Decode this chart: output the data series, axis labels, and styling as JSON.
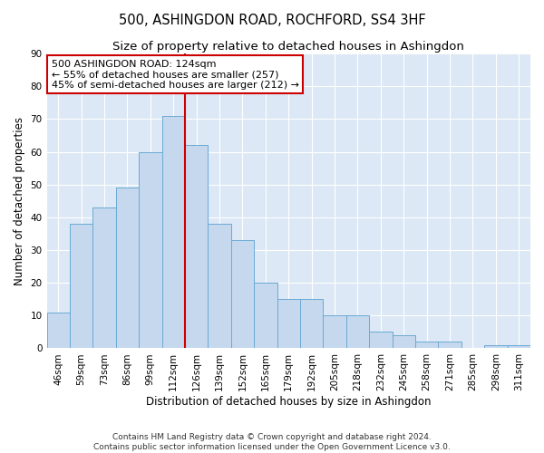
{
  "title": "500, ASHINGDON ROAD, ROCHFORD, SS4 3HF",
  "subtitle": "Size of property relative to detached houses in Ashingdon",
  "xlabel": "Distribution of detached houses by size in Ashingdon",
  "ylabel": "Number of detached properties",
  "categories": [
    "46sqm",
    "59sqm",
    "73sqm",
    "86sqm",
    "99sqm",
    "112sqm",
    "126sqm",
    "139sqm",
    "152sqm",
    "165sqm",
    "179sqm",
    "192sqm",
    "205sqm",
    "218sqm",
    "232sqm",
    "245sqm",
    "258sqm",
    "271sqm",
    "285sqm",
    "298sqm",
    "311sqm"
  ],
  "values": [
    11,
    38,
    43,
    49,
    60,
    71,
    62,
    38,
    33,
    20,
    15,
    15,
    10,
    10,
    5,
    4,
    2,
    2,
    0,
    1,
    1
  ],
  "bar_color": "#c5d8ee",
  "bar_edge_color": "#6aaad4",
  "vline_color": "#cc0000",
  "vline_index": 5.5,
  "annotation_line1": "500 ASHINGDON ROAD: 124sqm",
  "annotation_line2": "← 55% of detached houses are smaller (257)",
  "annotation_line3": "45% of semi-detached houses are larger (212) →",
  "annotation_box_color": "#ffffff",
  "annotation_box_edge": "#cc0000",
  "ylim": [
    0,
    90
  ],
  "yticks": [
    0,
    10,
    20,
    30,
    40,
    50,
    60,
    70,
    80,
    90
  ],
  "bg_color": "#dce8f5",
  "grid_color": "#ffffff",
  "footer_line1": "Contains HM Land Registry data © Crown copyright and database right 2024.",
  "footer_line2": "Contains public sector information licensed under the Open Government Licence v3.0.",
  "title_fontsize": 10.5,
  "subtitle_fontsize": 9.5,
  "xlabel_fontsize": 8.5,
  "ylabel_fontsize": 8.5,
  "tick_fontsize": 7.5,
  "annotation_fontsize": 8,
  "footer_fontsize": 6.5
}
